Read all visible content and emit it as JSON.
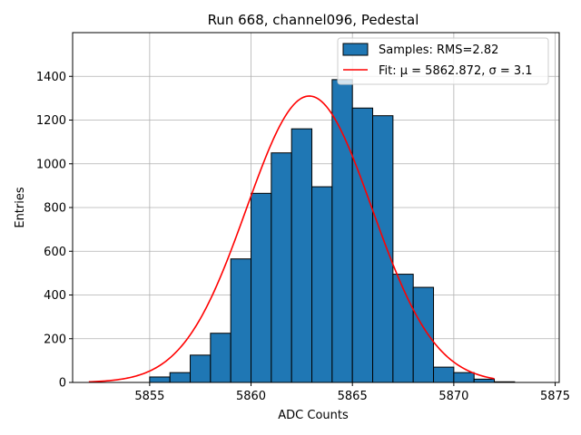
{
  "chart_data": {
    "type": "bar",
    "title": "Run 668, channel096, Pedestal",
    "xlabel": "ADC Counts",
    "ylabel": "Entries",
    "xlim": [
      5851.2,
      5875.2
    ],
    "ylim": [
      0,
      1600
    ],
    "xticks": [
      5855,
      5860,
      5865,
      5870,
      5875
    ],
    "yticks": [
      0,
      200,
      400,
      600,
      800,
      1000,
      1200,
      1400
    ],
    "grid": true,
    "legend_position": "top-right",
    "bar_color": "#1f77b4",
    "fit_color": "#ff0000",
    "histogram": {
      "name": "Samples: RMS=2.82",
      "bin_edges": [
        5852,
        5853,
        5854,
        5855,
        5856,
        5857,
        5858,
        5859,
        5860,
        5861,
        5862,
        5863,
        5864,
        5865,
        5866,
        5867,
        5868,
        5869,
        5870,
        5871,
        5872,
        5873,
        5874
      ],
      "counts": [
        0,
        0,
        0,
        25,
        45,
        125,
        225,
        565,
        865,
        1050,
        1160,
        895,
        1385,
        1255,
        1220,
        495,
        435,
        70,
        45,
        15,
        3,
        0
      ]
    },
    "fit": {
      "name": "Fit: μ = 5862.872, σ = 3.1",
      "type": "gaussian",
      "mu": 5862.872,
      "sigma": 3.1,
      "amplitude": 1310,
      "x_range": [
        5852,
        5872
      ]
    }
  }
}
